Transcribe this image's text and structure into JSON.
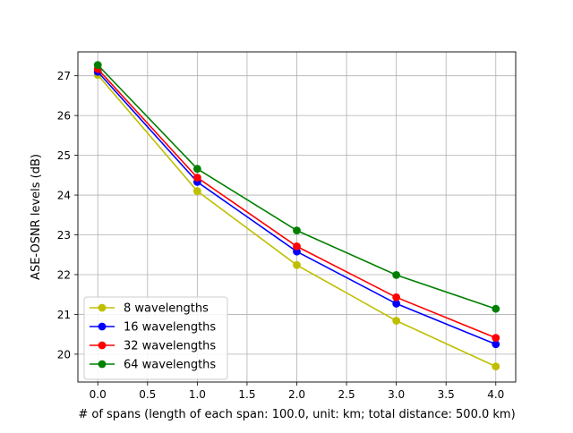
{
  "chart_data": {
    "type": "line",
    "title": "",
    "xlabel": "# of spans (length of each span: 100.0, unit: km; total distance: 500.0 km)",
    "ylabel": "ASE-OSNR levels (dB)",
    "x": [
      0,
      1,
      2,
      3,
      4
    ],
    "xlim": [
      -0.2,
      4.2
    ],
    "ylim": [
      19.3,
      27.6
    ],
    "xticks": [
      0.0,
      0.5,
      1.0,
      1.5,
      2.0,
      2.5,
      3.0,
      3.5,
      4.0
    ],
    "xtick_labels": [
      "0.0",
      "0.5",
      "1.0",
      "1.5",
      "2.0",
      "2.5",
      "3.0",
      "3.5",
      "4.0"
    ],
    "yticks": [
      20,
      21,
      22,
      23,
      24,
      25,
      26,
      27
    ],
    "ytick_labels": [
      "20",
      "21",
      "22",
      "23",
      "24",
      "25",
      "26",
      "27"
    ],
    "grid": true,
    "legend_position": "lower-left",
    "series": [
      {
        "name": "8 wavelengths",
        "color": "#bfbf00",
        "values": [
          27.02,
          24.1,
          22.24,
          20.84,
          19.69
        ]
      },
      {
        "name": "16 wavelengths",
        "color": "#0000ff",
        "values": [
          27.1,
          24.33,
          22.58,
          21.27,
          20.25
        ]
      },
      {
        "name": "32 wavelengths",
        "color": "#ff0000",
        "values": [
          27.17,
          24.44,
          22.71,
          21.43,
          20.41
        ]
      },
      {
        "name": "64 wavelengths",
        "color": "#008000",
        "values": [
          27.27,
          24.66,
          23.11,
          21.99,
          21.14
        ]
      }
    ]
  }
}
